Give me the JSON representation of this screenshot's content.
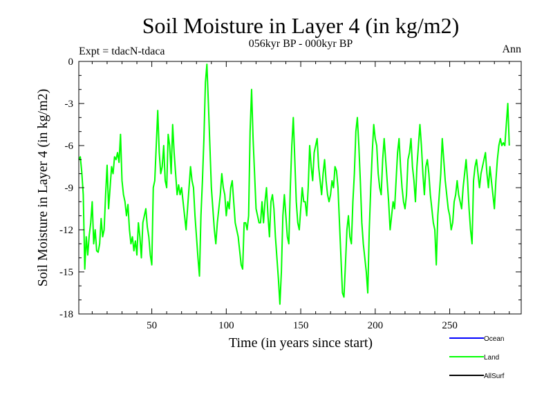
{
  "chart_data": {
    "type": "line",
    "title": "Soil Moisture in Layer 4 (in kg/m2)",
    "subtitle": "056kyr BP - 000kyr BP",
    "experiment_label": "Expt = tdacN-tdaca",
    "period_label": "Ann",
    "xlabel": "Time (in years since start)",
    "ylabel": "Soil Moisture in Layer 4 (in kg/m2)",
    "xlim": [
      1,
      298
    ],
    "ylim": [
      -18,
      0
    ],
    "x_ticks": [
      50,
      100,
      150,
      200,
      250
    ],
    "x_tick_labels": [
      "50",
      "100",
      "150",
      "200",
      "250"
    ],
    "y_ticks": [
      0,
      -3,
      -6,
      -9,
      -12,
      -15,
      -18
    ],
    "y_tick_labels": [
      "0",
      "-3",
      "-6",
      "-9",
      "-12",
      "-15",
      "-18"
    ],
    "legend": [
      {
        "name": "Ocean",
        "color": "#0000ff"
      },
      {
        "name": "Land",
        "color": "#00ff00"
      },
      {
        "name": "AllSurf",
        "color": "#000000"
      }
    ],
    "series": [
      {
        "name": "Land",
        "color": "#00ff00",
        "x_start": 1,
        "x_step": 1,
        "values": [
          -7.0,
          -6.8,
          -7.9,
          -9.5,
          -14.8,
          -12.5,
          -13.8,
          -12.4,
          -11.5,
          -10.0,
          -13.0,
          -12.0,
          -13.5,
          -13.6,
          -13.0,
          -11.2,
          -12.5,
          -12.0,
          -9.5,
          -7.4,
          -10.5,
          -9.0,
          -7.5,
          -8.0,
          -6.8,
          -7.0,
          -6.5,
          -7.2,
          -5.2,
          -8.5,
          -9.5,
          -10.0,
          -11.0,
          -10.2,
          -12.0,
          -13.0,
          -12.5,
          -13.5,
          -12.8,
          -13.8,
          -11.5,
          -12.5,
          -14.0,
          -11.5,
          -11.0,
          -10.5,
          -11.8,
          -12.5,
          -13.8,
          -14.5,
          -9.0,
          -8.5,
          -6.0,
          -3.5,
          -6.5,
          -8.0,
          -7.5,
          -6.0,
          -8.5,
          -9.0,
          -5.2,
          -6.0,
          -8.0,
          -4.5,
          -6.5,
          -8.0,
          -9.5,
          -8.8,
          -9.5,
          -9.0,
          -10.0,
          -11.0,
          -12.0,
          -10.5,
          -9.0,
          -7.5,
          -8.5,
          -9.0,
          -11.0,
          -12.5,
          -14.0,
          -15.3,
          -11.0,
          -8.5,
          -5.5,
          -1.5,
          -0.2,
          -3.0,
          -6.0,
          -9.0,
          -10.5,
          -12.0,
          -13.0,
          -11.5,
          -10.5,
          -9.5,
          -8.0,
          -9.0,
          -9.5,
          -11.0,
          -10.0,
          -10.5,
          -9.0,
          -8.5,
          -10.0,
          -11.5,
          -12.0,
          -12.5,
          -13.5,
          -14.5,
          -14.8,
          -11.5,
          -11.5,
          -12.0,
          -11.0,
          -5.0,
          -2.0,
          -5.5,
          -8.0,
          -10.5,
          -11.0,
          -11.5,
          -11.5,
          -10.0,
          -11.5,
          -10.0,
          -9.0,
          -11.0,
          -12.5,
          -10.0,
          -9.5,
          -10.5,
          -12.5,
          -14.0,
          -15.5,
          -17.3,
          -15.0,
          -11.0,
          -9.5,
          -11.0,
          -12.5,
          -13.0,
          -9.0,
          -6.0,
          -4.0,
          -7.0,
          -10.0,
          -11.5,
          -12.0,
          -10.5,
          -9.0,
          -10.0,
          -10.0,
          -11.0,
          -9.0,
          -6.0,
          -7.5,
          -8.5,
          -6.5,
          -6.0,
          -5.5,
          -7.5,
          -8.5,
          -9.5,
          -8.0,
          -7.0,
          -8.5,
          -9.5,
          -10.0,
          -9.5,
          -8.5,
          -9.0,
          -7.5,
          -7.8,
          -9.0,
          -11.5,
          -14.0,
          -16.5,
          -16.8,
          -14.5,
          -12.0,
          -11.0,
          -12.5,
          -13.0,
          -10.0,
          -8.0,
          -5.0,
          -4.0,
          -6.0,
          -8.5,
          -11.5,
          -13.0,
          -14.0,
          -15.0,
          -16.5,
          -12.0,
          -9.0,
          -6.5,
          -4.5,
          -5.5,
          -6.0,
          -8.0,
          -9.0,
          -9.5,
          -7.0,
          -5.5,
          -7.0,
          -8.5,
          -10.0,
          -12.0,
          -11.0,
          -10.0,
          -10.5,
          -8.5,
          -6.5,
          -5.5,
          -7.5,
          -9.0,
          -10.0,
          -10.5,
          -9.5,
          -7.0,
          -6.5,
          -5.5,
          -7.5,
          -8.5,
          -10.0,
          -7.5,
          -6.0,
          -4.5,
          -6.0,
          -8.0,
          -9.5,
          -7.5,
          -7.0,
          -8.0,
          -9.5,
          -10.5,
          -11.5,
          -12.0,
          -14.5,
          -11.0,
          -9.5,
          -8.0,
          -5.5,
          -7.0,
          -8.5,
          -9.5,
          -10.5,
          -11.0,
          -12.0,
          -11.5,
          -10.0,
          -9.5,
          -8.5,
          -9.5,
          -10.0,
          -10.5,
          -9.0,
          -8.0,
          -7.0,
          -8.5,
          -10.5,
          -12.0,
          -13.0,
          -8.5,
          -7.5,
          -7.0,
          -8.0,
          -9.0,
          -8.0,
          -7.5,
          -7.0,
          -6.5,
          -8.0,
          -9.0,
          -7.5,
          -8.5,
          -9.5,
          -10.5,
          -8.5,
          -7.0,
          -6.0,
          -5.5,
          -6.0,
          -5.8,
          -6.0,
          -4.5,
          -3.0,
          -6.0
        ]
      }
    ]
  }
}
